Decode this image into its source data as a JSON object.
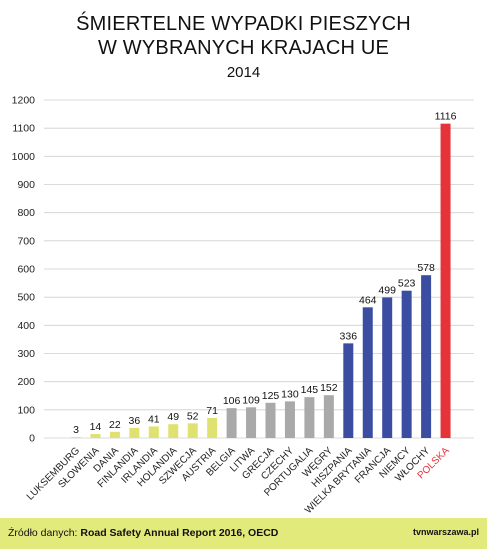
{
  "chart_data": {
    "type": "bar",
    "title_lines": [
      "ŚMIERTELNE WYPADKI PIESZYCH",
      "W WYBRANYCH KRAJACH UE"
    ],
    "subtitle": "2014",
    "categories": [
      "LUKSEMBURG",
      "SŁOWENIA",
      "DANIA",
      "FINLANDIA",
      "IRLANDIA",
      "HOLANDIA",
      "SZWECJA",
      "AUSTRIA",
      "BELGIA",
      "LITWA",
      "GRECJA",
      "CZECHY",
      "PORTUGALIA",
      "WĘGRY",
      "HISZPANIA",
      "WIELKA BRYTANIA",
      "FRANCJA",
      "NIEMCY",
      "WŁOCHY",
      "POLSKA"
    ],
    "values": [
      3,
      14,
      22,
      36,
      41,
      49,
      52,
      71,
      106,
      109,
      125,
      130,
      145,
      152,
      336,
      464,
      499,
      523,
      578,
      1116
    ],
    "bar_colors": [
      "#dfe270",
      "#dfe270",
      "#dfe270",
      "#dfe270",
      "#dfe270",
      "#dfe270",
      "#dfe270",
      "#dfe270",
      "#a9a9a9",
      "#a9a9a9",
      "#a9a9a9",
      "#a9a9a9",
      "#a9a9a9",
      "#a9a9a9",
      "#3b4da0",
      "#3b4da0",
      "#3b4da0",
      "#3b4da0",
      "#3b4da0",
      "#e5333a"
    ],
    "label_colors": [
      "#222222",
      "#222222",
      "#222222",
      "#222222",
      "#222222",
      "#222222",
      "#222222",
      "#222222",
      "#222222",
      "#222222",
      "#222222",
      "#222222",
      "#222222",
      "#222222",
      "#222222",
      "#222222",
      "#222222",
      "#222222",
      "#222222",
      "#e5333a"
    ],
    "ylim": [
      0,
      1200
    ],
    "yticks": [
      0,
      100,
      200,
      300,
      400,
      500,
      600,
      700,
      800,
      900,
      1000,
      1100,
      1200
    ],
    "grid": true,
    "xlabel": "",
    "ylabel": ""
  },
  "footer": {
    "source_label": "Źródło danych: ",
    "source_value": "Road Safety Annual Report 2016, OECD",
    "brand": "tvnwarszawa.pl",
    "background": "#e3ea7c"
  }
}
